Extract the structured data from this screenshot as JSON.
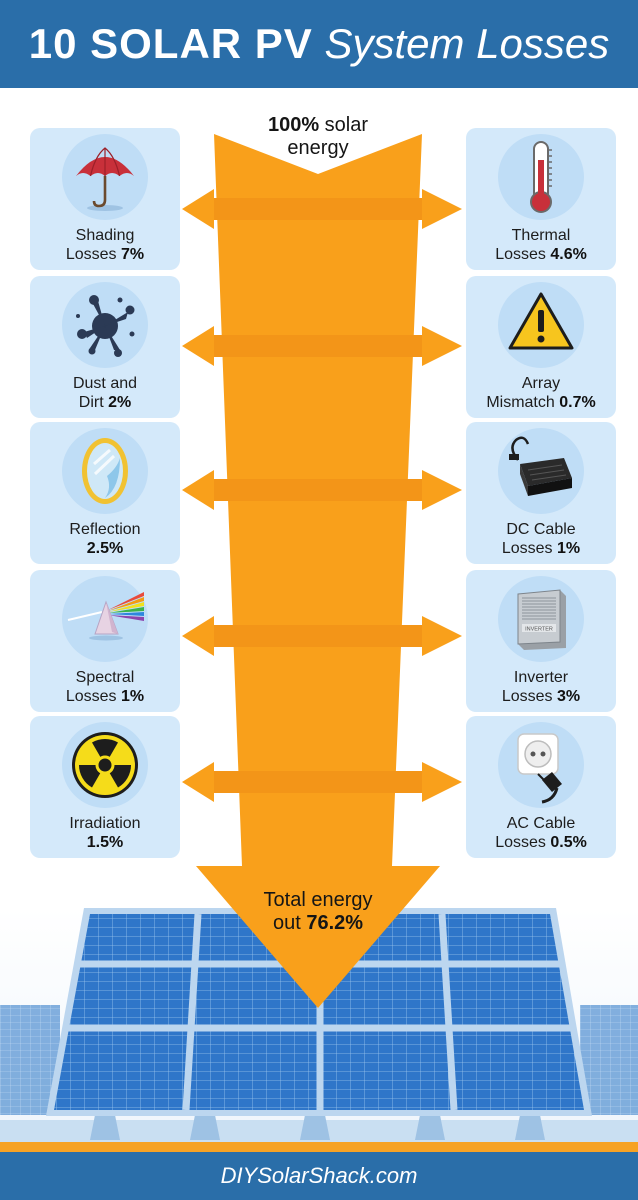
{
  "title": {
    "part1": "10 SOLAR PV",
    "part2": "System Losses"
  },
  "top_flow": {
    "value": "100%",
    "text": "solar",
    "line2": "energy"
  },
  "bottom_flow": {
    "line1": "Total energy",
    "line2_text": "out",
    "line2_value": "76.2%"
  },
  "losses_left": [
    {
      "icon": "umbrella-icon",
      "line1": "Shading",
      "line2_text": "Losses",
      "value": "7%"
    },
    {
      "icon": "dust-splat-icon",
      "line1": "Dust and",
      "line2_text": "Dirt",
      "value": "2%"
    },
    {
      "icon": "mirror-icon",
      "line1": "Reflection",
      "line2_text": "",
      "value": "2.5%"
    },
    {
      "icon": "prism-icon",
      "line1": "Spectral",
      "line2_text": "Losses",
      "value": "1%"
    },
    {
      "icon": "radiation-icon",
      "line1": "Irradiation",
      "line2_text": "",
      "value": "1.5%"
    }
  ],
  "losses_right": [
    {
      "icon": "thermometer-icon",
      "line1": "Thermal",
      "line2_text": "Losses",
      "value": "4.6%"
    },
    {
      "icon": "warning-icon",
      "line1": "Array",
      "line2_text": "Mismatch",
      "value": "0.7%"
    },
    {
      "icon": "dc-adapter-icon",
      "line1": "DC Cable",
      "line2_text": "Losses",
      "value": "1%"
    },
    {
      "icon": "inverter-icon",
      "line1": "Inverter",
      "line2_text": "Losses",
      "value": "3%",
      "icon_label": "INVERTER"
    },
    {
      "icon": "power-socket-icon",
      "line1": "AC Cable",
      "line2_text": "Losses",
      "value": "0.5%"
    }
  ],
  "footer": {
    "text": "DIYSolarShack.com"
  },
  "colors": {
    "header_blue": "#2a6ea9",
    "arrow_orange": "#f9a01b",
    "card_blue": "#d4e9fa",
    "panel_blue": "#2f76c9",
    "accent_orange": "#f6a224"
  }
}
